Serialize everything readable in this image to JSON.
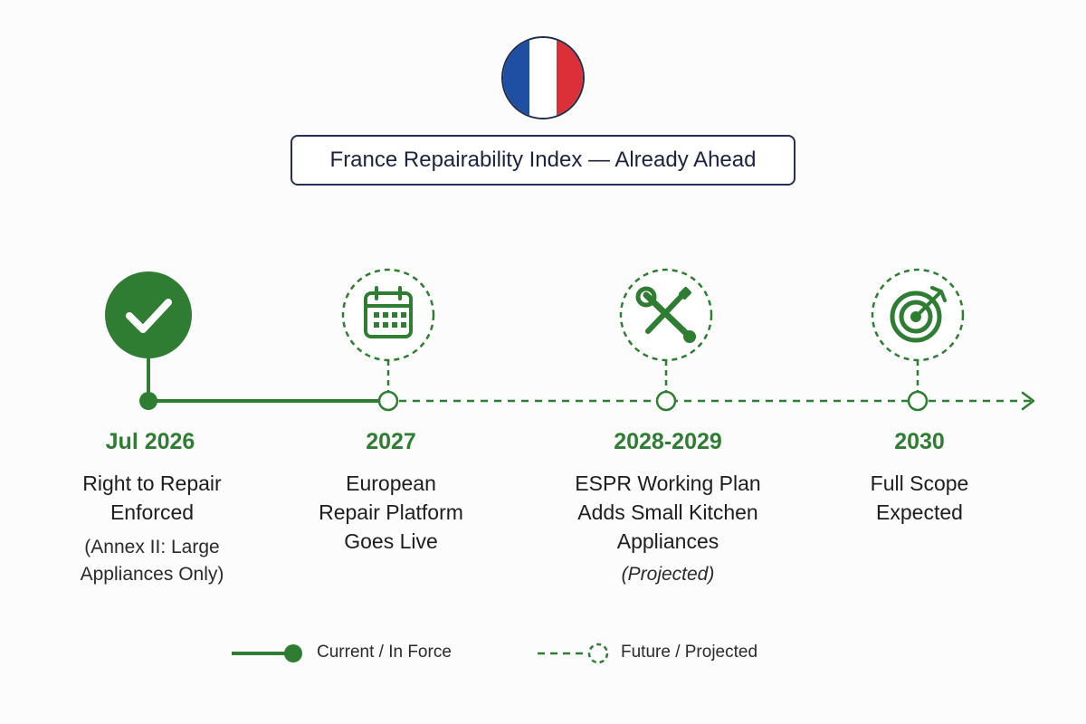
{
  "header": {
    "title": "France Repairability Index — Already Ahead",
    "flag_colors": [
      "#1f4fa3",
      "#ffffff",
      "#dc3039"
    ]
  },
  "colors": {
    "accent": "#2e7d32",
    "navy": "#22305a"
  },
  "milestones": [
    {
      "status": "current",
      "icon": "check-icon",
      "year": "Jul 2026",
      "lines": [
        "Right to Repair",
        "Enforced"
      ],
      "note": [
        "(Annex II: Large",
        "Appliances Only)"
      ],
      "note_style": "normal"
    },
    {
      "status": "future",
      "icon": "calendar-icon",
      "year": "2027",
      "lines": [
        "European",
        "Repair Platform",
        "Goes Live"
      ],
      "note": [],
      "note_style": "normal"
    },
    {
      "status": "future",
      "icon": "wrench-screwdriver-icon",
      "year": "2028-2029",
      "lines": [
        "ESPR Working Plan",
        "Adds Small Kitchen",
        "Appliances"
      ],
      "note": [
        "(Projected)"
      ],
      "note_style": "italic"
    },
    {
      "status": "future",
      "icon": "target-icon",
      "year": "2030",
      "lines": [
        "Full Scope",
        "Expected"
      ],
      "note": [],
      "note_style": "normal"
    }
  ],
  "legend": {
    "current_label": "Current / In Force",
    "future_label": "Future / Projected"
  }
}
